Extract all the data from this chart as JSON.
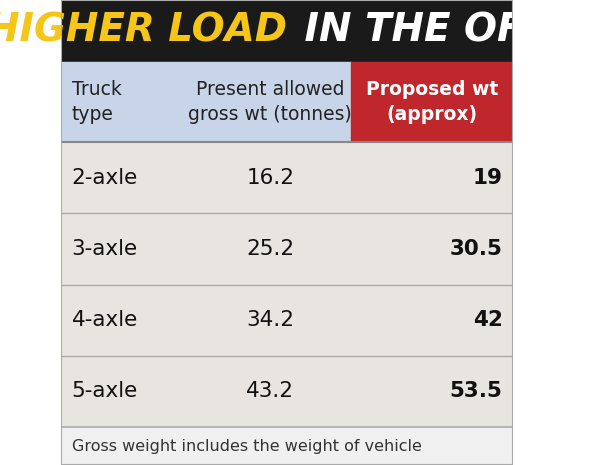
{
  "title_part1": "HIGHER LOAD",
  "title_part2": " IN THE OFFING",
  "title_bg_color": "#1a1a1a",
  "title_text_color1": "#f5c518",
  "title_text_color2": "#ffffff",
  "header_col1": "Truck\ntype",
  "header_col2": "Present allowed\ngross wt (tonnes)",
  "header_col3": "Proposed wt\n(approx)",
  "header_bg_col1": "#c8d4e8",
  "header_bg_col2": "#c8d4e8",
  "header_bg_col3": "#c0272d",
  "header_text_col3": "#ffffff",
  "rows": [
    {
      "truck": "2-axle",
      "present": "16.2",
      "proposed": "19"
    },
    {
      "truck": "3-axle",
      "present": "25.2",
      "proposed": "30.5"
    },
    {
      "truck": "4-axle",
      "present": "34.2",
      "proposed": "42"
    },
    {
      "truck": "5-axle",
      "present": "43.2",
      "proposed": "53.5"
    }
  ],
  "row_bg_even": "#e8e8e8",
  "row_bg_odd": "#d8d8d8",
  "row_line_color": "#aaaaaa",
  "footnote": "Gross weight includes the weight of vehicle",
  "footnote_bg": "#f0f0f0"
}
